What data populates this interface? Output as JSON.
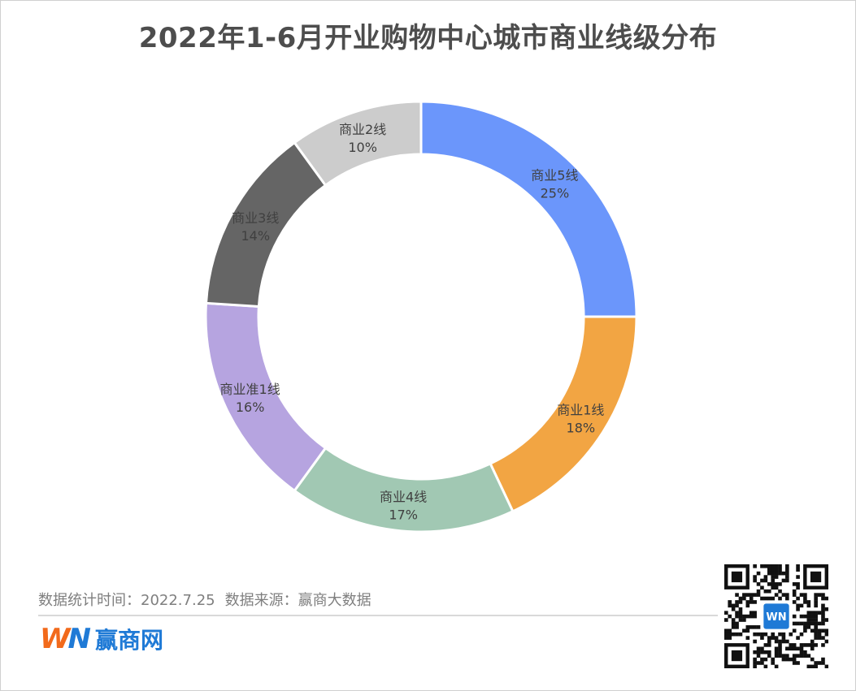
{
  "title": "2022年1-6月开业购物中心城市商业线级分布",
  "chart_data": {
    "type": "pie",
    "variant": "donut",
    "title": "2022年1-6月开业购物中心城市商业线级分布",
    "slices": [
      {
        "label": "商业5线",
        "value": 25,
        "value_label": "25%",
        "color": "#6b96fb"
      },
      {
        "label": "商业1线",
        "value": 18,
        "value_label": "18%",
        "color": "#f2a543"
      },
      {
        "label": "商业4线",
        "value": 17,
        "value_label": "17%",
        "color": "#a1c8b3"
      },
      {
        "label": "商业准1线",
        "value": 16,
        "value_label": "16%",
        "color": "#b6a4e0"
      },
      {
        "label": "商业3线",
        "value": 14,
        "value_label": "14%",
        "color": "#656565"
      },
      {
        "label": "商业2线",
        "value": 10,
        "value_label": "10%",
        "color": "#cccccc"
      }
    ],
    "start": "top",
    "direction": "clockwise",
    "legend": "none"
  },
  "footer": {
    "stat_time": "数据统计时间：2022.7.25",
    "source": "数据来源：赢商大数据"
  },
  "brand": {
    "mark_w": "W",
    "mark_n": "N",
    "name": "赢商网"
  },
  "qr": {
    "center_badge": "WN"
  }
}
